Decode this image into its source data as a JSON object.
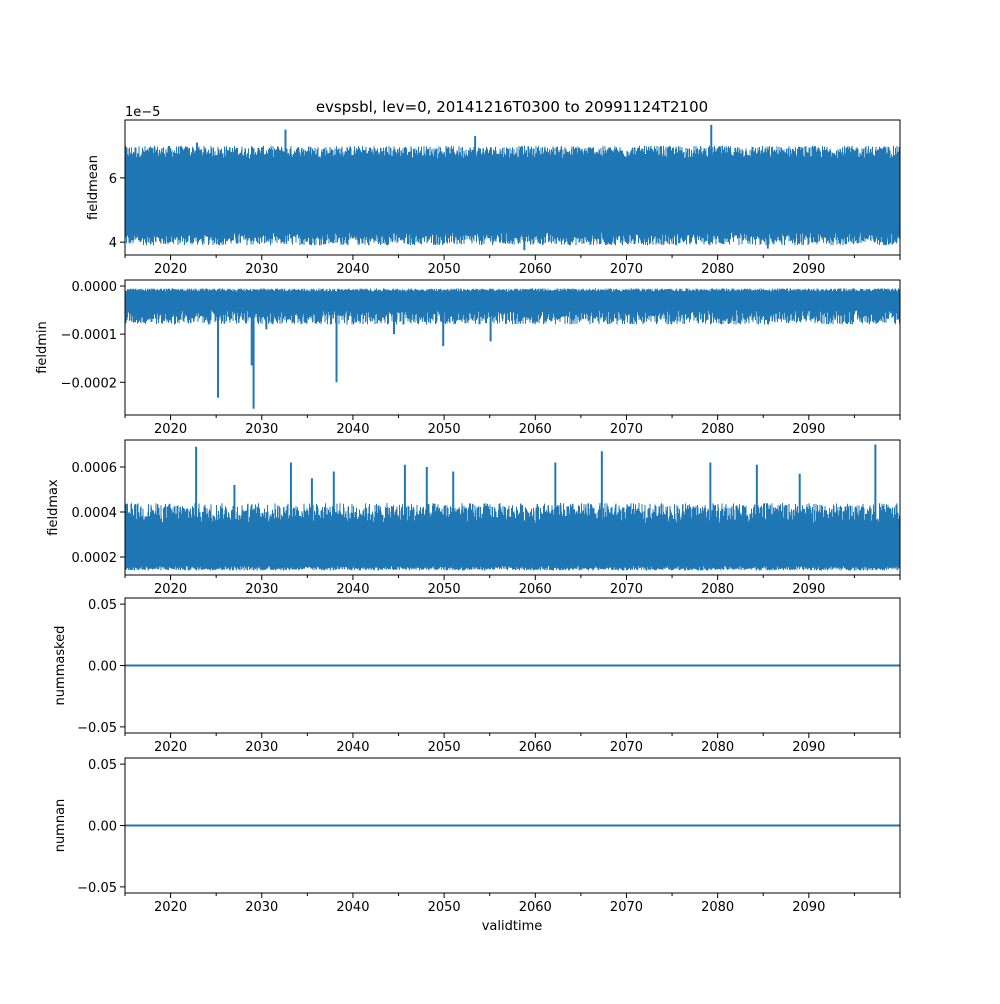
{
  "figure": {
    "title": "evspsbl, lev=0, 20141216T0300 to 20991124T2100",
    "xlabel": "validtime",
    "line_color": "#1f77b4"
  },
  "chart_data": [
    {
      "type": "line",
      "ylabel": "fieldmean",
      "offset_label": "1e−5",
      "xlim": [
        2015.0,
        2100.0
      ],
      "ylim": [
        3.6e-05,
        7.8e-05
      ],
      "yticks": [
        4e-05,
        6e-05
      ],
      "ytick_labels": [
        "4",
        "6"
      ],
      "xtick_labels": [
        "2020",
        "2030",
        "2040",
        "2050",
        "2060",
        "2070",
        "2080",
        "2090"
      ],
      "series": [
        {
          "band_low": 4.3e-05,
          "band_high": 6.6e-05,
          "envelope_min": 3.9e-05,
          "envelope_max": 7e-05,
          "spikes": [
            [
              2022.9,
              7.1e-05
            ],
            [
              2032.6,
              7.5e-05
            ],
            [
              2053.4,
              7.3e-05
            ],
            [
              2058.8,
              3.75e-05
            ],
            [
              2079.3,
              7.65e-05
            ],
            [
              2085.5,
              3.8e-05
            ]
          ]
        }
      ]
    },
    {
      "type": "line",
      "ylabel": "fieldmin",
      "xlim": [
        2015.0,
        2100.0
      ],
      "ylim": [
        -0.000268,
        1.25e-05
      ],
      "yticks": [
        0.0,
        -0.0001,
        -0.0002
      ],
      "ytick_labels": [
        "0.0000",
        "−0.0001",
        "−0.0002"
      ],
      "xtick_labels": [
        "2020",
        "2030",
        "2040",
        "2050",
        "2060",
        "2070",
        "2080",
        "2090"
      ],
      "series": [
        {
          "band_low": -5e-05,
          "band_high": -1.2e-05,
          "envelope_min": -8e-05,
          "envelope_max": -5e-06,
          "spikes": [
            [
              2025.2,
              -0.000232
            ],
            [
              2028.9,
              -0.000165
            ],
            [
              2029.1,
              -0.000255
            ],
            [
              2038.2,
              -0.0002
            ],
            [
              2049.9,
              -0.000125
            ],
            [
              2055.1,
              -0.000115
            ],
            [
              2030.5,
              -9e-05
            ],
            [
              2044.5,
              -0.0001
            ]
          ]
        }
      ]
    },
    {
      "type": "line",
      "ylabel": "fieldmax",
      "xlim": [
        2015.0,
        2100.0
      ],
      "ylim": [
        0.00012,
        0.00072
      ],
      "yticks": [
        0.0002,
        0.0004,
        0.0006
      ],
      "ytick_labels": [
        "0.0002",
        "0.0004",
        "0.0006"
      ],
      "xtick_labels": [
        "2020",
        "2030",
        "2040",
        "2050",
        "2060",
        "2070",
        "2080",
        "2090"
      ],
      "series": [
        {
          "band_low": 0.00016,
          "band_high": 0.00035,
          "envelope_min": 0.00014,
          "envelope_max": 0.00044,
          "spikes": [
            [
              2022.8,
              0.00069
            ],
            [
              2027.0,
              0.00052
            ],
            [
              2033.2,
              0.00062
            ],
            [
              2035.5,
              0.00055
            ],
            [
              2037.9,
              0.00058
            ],
            [
              2045.7,
              0.00061
            ],
            [
              2048.1,
              0.0006
            ],
            [
              2051.0,
              0.00058
            ],
            [
              2062.2,
              0.00062
            ],
            [
              2067.3,
              0.00067
            ],
            [
              2079.2,
              0.00062
            ],
            [
              2084.3,
              0.00061
            ],
            [
              2097.3,
              0.0007
            ],
            [
              2089.0,
              0.00057
            ]
          ]
        }
      ]
    },
    {
      "type": "line",
      "ylabel": "nummasked",
      "xlim": [
        2015.0,
        2100.0
      ],
      "ylim": [
        -0.055,
        0.055
      ],
      "yticks": [
        0.05,
        0.0,
        -0.05
      ],
      "ytick_labels": [
        "0.05",
        "0.00",
        "−0.05"
      ],
      "xtick_labels": [
        "2020",
        "2030",
        "2040",
        "2050",
        "2060",
        "2070",
        "2080",
        "2090"
      ],
      "series": [
        {
          "x": [
            2015.0,
            2100.0
          ],
          "y": [
            0.0,
            0.0
          ]
        }
      ]
    },
    {
      "type": "line",
      "ylabel": "numnan",
      "xlim": [
        2015.0,
        2100.0
      ],
      "ylim": [
        -0.055,
        0.055
      ],
      "yticks": [
        0.05,
        0.0,
        -0.05
      ],
      "ytick_labels": [
        "0.05",
        "0.00",
        "−0.05"
      ],
      "xtick_labels": [
        "2020",
        "2030",
        "2040",
        "2050",
        "2060",
        "2070",
        "2080",
        "2090"
      ],
      "series": [
        {
          "x": [
            2015.0,
            2100.0
          ],
          "y": [
            0.0,
            0.0
          ]
        }
      ]
    }
  ]
}
